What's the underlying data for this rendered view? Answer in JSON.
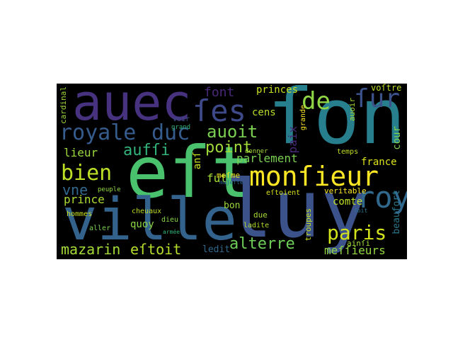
{
  "wordcloud": {
    "words": [
      {
        "text": "auec",
        "color": "#46327e"
      },
      {
        "text": "ſon",
        "color": "#277f8e"
      },
      {
        "text": "eſt",
        "color": "#4ac16d"
      },
      {
        "text": "luy",
        "color": "#3b528b"
      },
      {
        "text": "ville",
        "color": "#33638d"
      },
      {
        "text": "monſieur",
        "color": "#fde725"
      },
      {
        "text": "royale",
        "color": "#365c8d"
      },
      {
        "text": "duc",
        "color": "#365c8d"
      },
      {
        "text": "ſes",
        "color": "#3e4989"
      },
      {
        "text": "bien",
        "color": "#bddf26"
      },
      {
        "text": "paris",
        "color": "#d2e21b"
      },
      {
        "text": "roy",
        "color": "#31688e"
      },
      {
        "text": "ſur",
        "color": "#3b528b"
      },
      {
        "text": "de",
        "color": "#8fd744"
      },
      {
        "text": "auoit",
        "color": "#7ad151"
      },
      {
        "text": "font",
        "color": "#482878"
      },
      {
        "text": "aufſi",
        "color": "#31b57b"
      },
      {
        "text": "point",
        "color": "#a0da39"
      },
      {
        "text": "mazarin",
        "color": "#a5db36"
      },
      {
        "text": "eſtoit",
        "color": "#b5de2b"
      },
      {
        "text": "alterre",
        "color": "#6ece58"
      },
      {
        "text": "meſſieurs",
        "color": "#95d840"
      },
      {
        "text": "vne",
        "color": "#31688e"
      },
      {
        "text": "lieur",
        "color": "#9bd93c"
      },
      {
        "text": "prince",
        "color": "#addc30"
      },
      {
        "text": "princes",
        "color": "#c8e020"
      },
      {
        "text": "cens",
        "color": "#b8de29"
      },
      {
        "text": "parlement",
        "color": "#7ad151"
      },
      {
        "text": "france",
        "color": "#dde318"
      },
      {
        "text": "paix",
        "color": "#482878"
      },
      {
        "text": "comte",
        "color": "#bddf26"
      },
      {
        "text": "fut",
        "color": "#a5db36"
      },
      {
        "text": "bon",
        "color": "#9fda3a"
      },
      {
        "text": "quoy",
        "color": "#8bd646"
      },
      {
        "text": "ledit",
        "color": "#31688e"
      },
      {
        "text": "cour",
        "color": "#7fd34e"
      },
      {
        "text": "beaufort",
        "color": "#2a788e"
      },
      {
        "text": "anſ",
        "color": "#c8e020"
      },
      {
        "text": "troupes",
        "color": "#cae11f"
      },
      {
        "text": "meſme",
        "color": "#f1e51d"
      },
      {
        "text": "auoir",
        "color": "#a8db34"
      },
      {
        "text": "voſtre",
        "color": "#bddf26"
      },
      {
        "text": "cardinal",
        "color": "#9fda3a"
      },
      {
        "text": "ainſi",
        "color": "#a0da39"
      },
      {
        "text": "voir",
        "color": "#3b528b"
      },
      {
        "text": "grand",
        "color": "#31b57b"
      },
      {
        "text": "hommes",
        "color": "#c8e020"
      },
      {
        "text": "peuple",
        "color": "#90d743"
      },
      {
        "text": "cheuaux",
        "color": "#c2df23"
      },
      {
        "text": "aller",
        "color": "#7ad151"
      },
      {
        "text": "dieu",
        "color": "#8bd646"
      },
      {
        "text": "ladite",
        "color": "#b5de2b"
      },
      {
        "text": "due",
        "color": "#a5db36"
      },
      {
        "text": "eſtoient",
        "color": "#d8e219"
      },
      {
        "text": "veritable",
        "color": "#fde725"
      },
      {
        "text": "grande",
        "color": "#fde725"
      },
      {
        "text": "donner",
        "color": "#a5db36"
      },
      {
        "text": "temps",
        "color": "#c2df23"
      },
      {
        "text": "ſoit",
        "color": "#2a788e"
      },
      {
        "text": "armée",
        "color": "#31b57b"
      },
      {
        "text": "majeſté",
        "color": "#31688e"
      }
    ]
  }
}
